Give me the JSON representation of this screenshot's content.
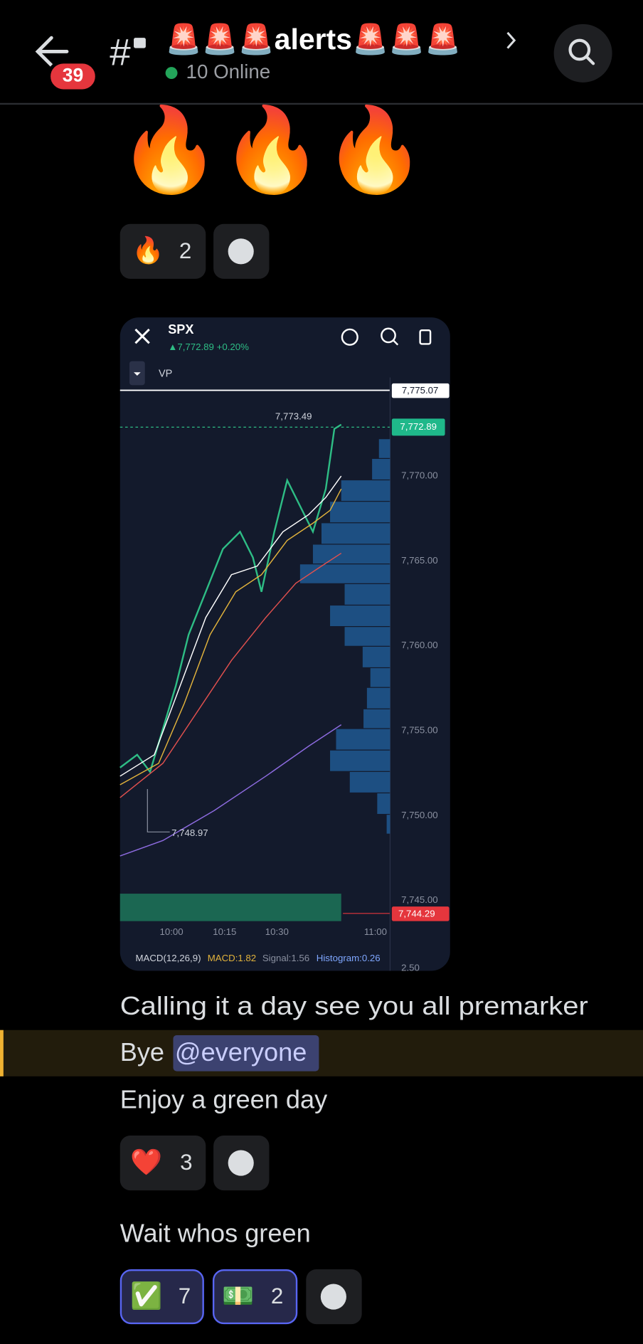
{
  "header": {
    "badge": "39",
    "channel": "🚨🚨🚨alerts🚨🚨🚨",
    "online": "10 Online"
  },
  "messages": [
    {
      "text": "🔥🔥🔥",
      "reactions": [
        {
          "emoji": "🔥",
          "count": 2
        }
      ]
    },
    {
      "embed": {
        "symbol": "SPX",
        "quote": "▲7,772.89 +0.20%",
        "indicator": "VP",
        "price_labels": [
          "7,775.07",
          "7,772.89",
          "7,770.00",
          "7,765.00",
          "7,760.00",
          "7,755.00",
          "7,750.00",
          "7,745.00",
          "7,744.29"
        ],
        "high_label": "7,773.49",
        "low_label": "7,748.97",
        "time_labels": [
          "10:00",
          "10:15",
          "10:30",
          "11:00"
        ],
        "macd": "MACD(12,26,9)",
        "macd_value": "MACD:1.82",
        "signal": "Signal:1.56",
        "histogram": "Histogram:0.26",
        "macd_axis": "2.50"
      }
    },
    {
      "text": "Calling it a day see you all premarker"
    },
    {
      "text": "Bye",
      "mention": "@everyone"
    },
    {
      "text": "Enjoy a green day",
      "reactions": [
        {
          "emoji": "❤️",
          "count": 3
        }
      ]
    },
    {
      "text": "Wait whos green",
      "reactions": [
        {
          "emoji": "✅",
          "count": 7
        },
        {
          "emoji": "💵",
          "count": 2
        }
      ]
    }
  ]
}
